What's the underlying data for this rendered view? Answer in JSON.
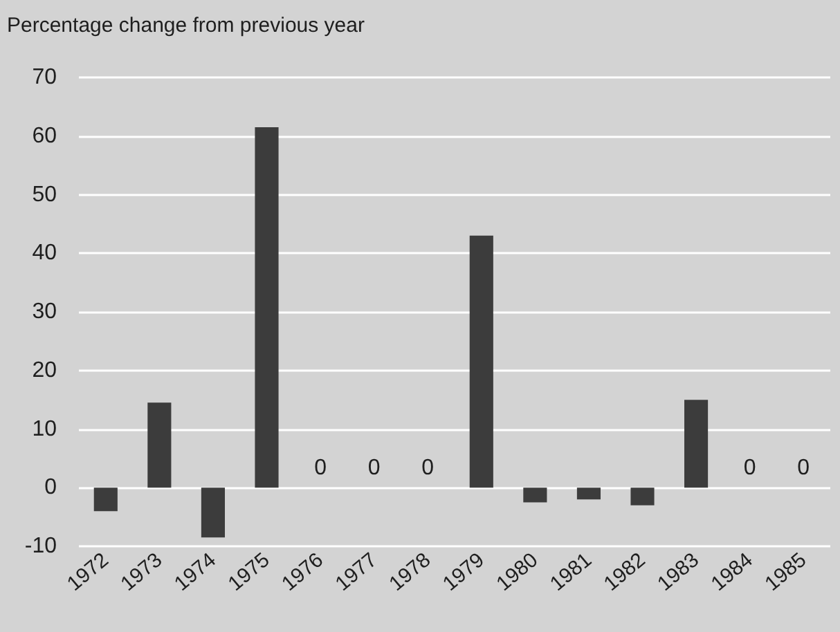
{
  "chart_data": {
    "type": "bar",
    "ylabel": "Percentage change from previous year",
    "categories": [
      "1972",
      "1973",
      "1974",
      "1975",
      "1976",
      "1977",
      "1978",
      "1979",
      "1980",
      "1981",
      "1982",
      "1983",
      "1984",
      "1985"
    ],
    "values": [
      -4,
      14.5,
      -8.5,
      61.5,
      0,
      0,
      0,
      43,
      -2.5,
      -2,
      -3,
      15,
      0,
      0
    ],
    "value_labels": [
      null,
      null,
      null,
      null,
      "0",
      "0",
      "0",
      null,
      null,
      null,
      null,
      null,
      "0",
      "0"
    ],
    "color": "#3c3c3c",
    "ylim": [
      -10,
      70
    ],
    "yticks": [
      -10,
      0,
      10,
      20,
      30,
      40,
      50,
      60,
      70
    ],
    "grid": "y"
  }
}
